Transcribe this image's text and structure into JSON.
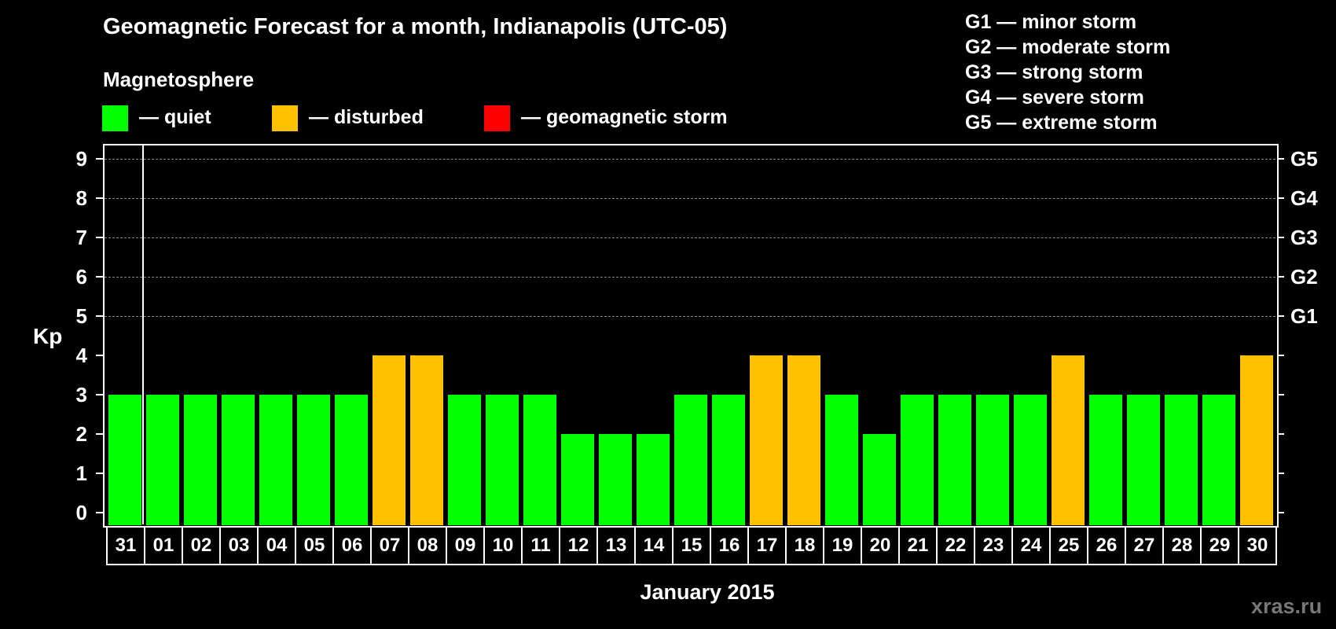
{
  "header": {
    "title": "Geomagnetic Forecast for a month, Indianapolis (UTC-05)",
    "subtitle": "Magnetosphere"
  },
  "legend": {
    "items": [
      {
        "label": "— quiet",
        "color": "#00ff00"
      },
      {
        "label": "— disturbed",
        "color": "#ffc000"
      },
      {
        "label": "— geomagnetic storm",
        "color": "#ff0000"
      }
    ]
  },
  "storm_scale": [
    "G1 — minor storm",
    "G2 — moderate storm",
    "G3 — strong storm",
    "G4 — severe storm",
    "G5 — extreme storm"
  ],
  "watermark": "xras.ru",
  "chart_data": {
    "type": "bar",
    "title": "Geomagnetic Forecast for a month, Indianapolis (UTC-05)",
    "subtitle": "Magnetosphere",
    "xlabel": "January 2015",
    "ylabel": "Kp",
    "ylim": [
      0,
      9
    ],
    "yticks": [
      0,
      1,
      2,
      3,
      4,
      5,
      6,
      7,
      8,
      9
    ],
    "right_axis_labels": {
      "5": "G1",
      "6": "G2",
      "7": "G3",
      "8": "G4",
      "9": "G5"
    },
    "grid": "dashed horizontal lines at 5,6,7,8,9",
    "categories": [
      "31",
      "01",
      "02",
      "03",
      "04",
      "05",
      "06",
      "07",
      "08",
      "09",
      "10",
      "11",
      "12",
      "13",
      "14",
      "15",
      "16",
      "17",
      "18",
      "19",
      "20",
      "21",
      "22",
      "23",
      "24",
      "25",
      "26",
      "27",
      "28",
      "29",
      "30"
    ],
    "values": [
      3,
      3,
      3,
      3,
      3,
      3,
      3,
      4,
      4,
      3,
      3,
      3,
      2,
      2,
      2,
      3,
      3,
      4,
      4,
      3,
      2,
      3,
      3,
      3,
      3,
      4,
      3,
      3,
      3,
      3,
      4
    ],
    "status": [
      "quiet",
      "quiet",
      "quiet",
      "quiet",
      "quiet",
      "quiet",
      "quiet",
      "disturbed",
      "disturbed",
      "quiet",
      "quiet",
      "quiet",
      "quiet",
      "quiet",
      "quiet",
      "quiet",
      "quiet",
      "disturbed",
      "disturbed",
      "quiet",
      "quiet",
      "quiet",
      "quiet",
      "quiet",
      "quiet",
      "disturbed",
      "quiet",
      "quiet",
      "quiet",
      "quiet",
      "disturbed"
    ],
    "colors": {
      "quiet": "#00ff00",
      "disturbed": "#ffc000",
      "storm": "#ff0000"
    },
    "legend": [
      "quiet",
      "disturbed",
      "geomagnetic storm"
    ]
  }
}
